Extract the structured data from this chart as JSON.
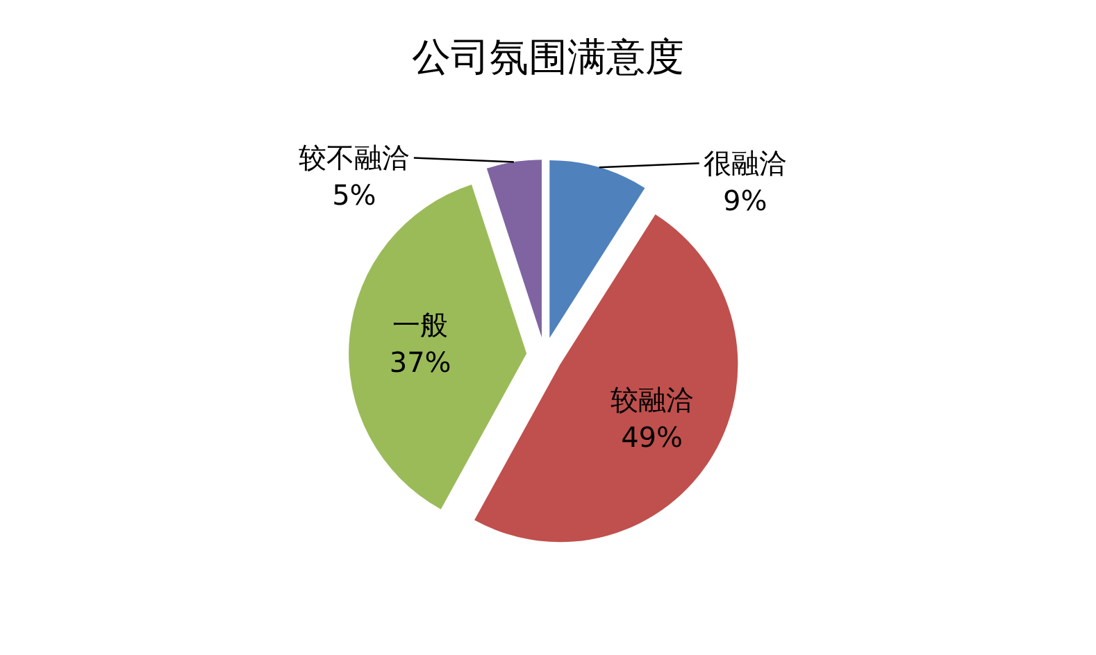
{
  "chart_data": {
    "type": "pie",
    "title": "公司氛围满意度",
    "categories": [
      "很融洽",
      "较融洽",
      "一般",
      "较不融洽"
    ],
    "values": [
      9,
      49,
      37,
      5
    ],
    "colors": [
      "#4f81bd",
      "#c0504d",
      "#9bbb59",
      "#8064a2"
    ],
    "value_labels": [
      "9%",
      "49%",
      "37%",
      "5%"
    ]
  }
}
